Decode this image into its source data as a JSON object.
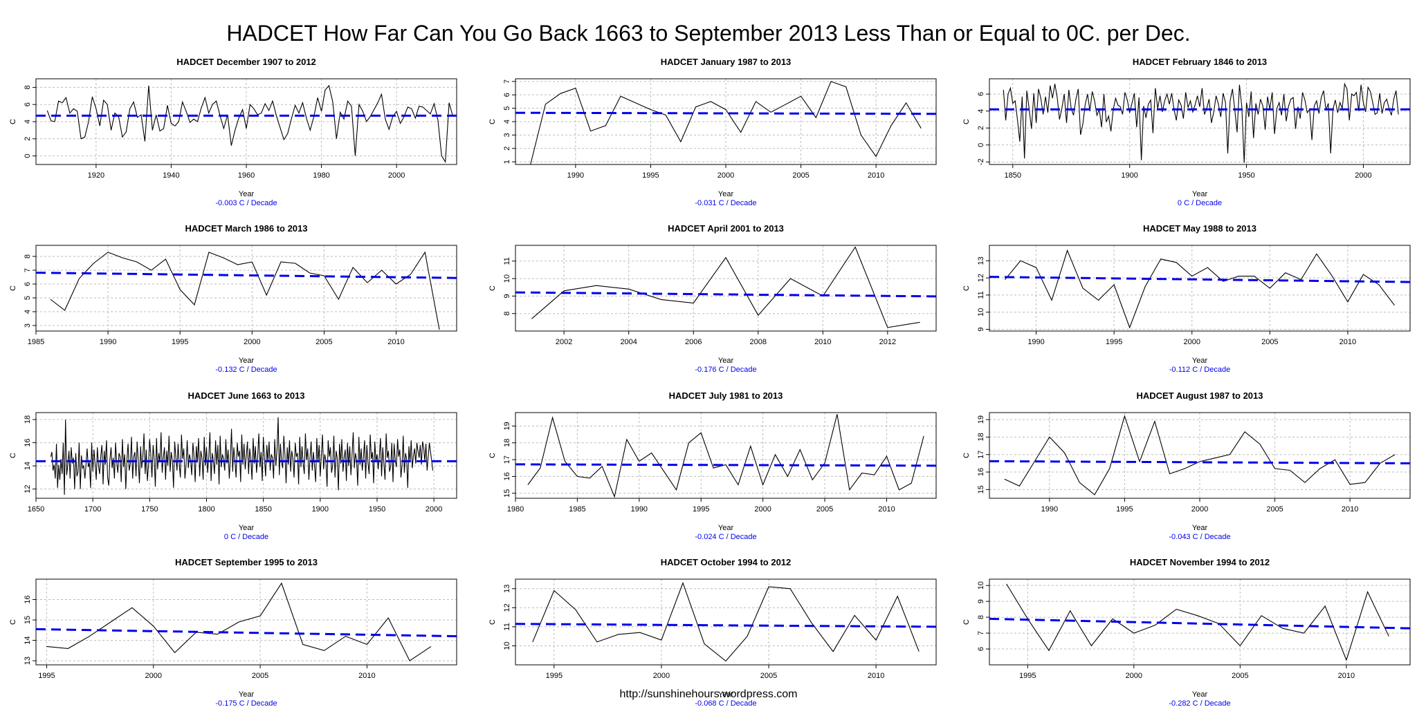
{
  "page": {
    "title": "HADCET How Far Can You Go Back 1663 to September 2013  Less Than or Equal to 0C. per Dec.",
    "footer_url": "http://sunshinehours.wordpress.com"
  },
  "colors": {
    "series": "#000000",
    "trend": "#0000ee",
    "grid": "#bbbbbb",
    "subtitle": "#0000ee"
  },
  "chart_data": [
    {
      "type": "line",
      "title": "HADCET December 1907 to 2012",
      "xlabel": "Year",
      "ylabel": "C",
      "subtitle": "-0.003 C / Decade",
      "xlim": [
        1904,
        2016
      ],
      "ylim": [
        -1,
        9
      ],
      "xticks": [
        1920,
        1940,
        1960,
        1980,
        2000
      ],
      "yticks": [
        0,
        2,
        4,
        6,
        8
      ],
      "trend": [
        [
          1904,
          4.7
        ],
        [
          2016,
          4.7
        ]
      ],
      "x_start": 1907,
      "values": [
        5.3,
        4.1,
        4.0,
        6.4,
        6.2,
        6.8,
        5.0,
        5.5,
        5.2,
        2.0,
        2.2,
        4.0,
        6.9,
        5.5,
        3.5,
        6.5,
        6.0,
        3.0,
        5.0,
        4.6,
        2.2,
        2.8,
        5.5,
        6.3,
        4.5,
        4.8,
        1.7,
        8.2,
        3.0,
        4.8,
        2.9,
        3.2,
        5.9,
        3.8,
        3.5,
        4.0,
        6.3,
        5.2,
        3.9,
        4.3,
        4.0,
        5.6,
        6.8,
        5.0,
        6.0,
        6.4,
        4.7,
        3.2,
        4.8,
        1.2,
        3.0,
        4.4,
        5.4,
        3.2,
        6.0,
        5.5,
        4.8,
        5.0,
        6.1,
        5.3,
        6.4,
        4.7,
        3.3,
        1.9,
        2.6,
        4.3,
        5.9,
        5.0,
        6.2,
        4.4,
        3.0,
        4.6,
        6.8,
        5.2,
        7.7,
        8.2,
        6.3,
        2.0,
        5.1,
        4.3,
        6.4,
        5.8,
        0.0,
        6.0,
        5.2,
        4.0,
        4.6,
        5.4,
        6.2,
        7.2,
        4.3,
        3.1,
        4.6,
        5.2,
        3.8,
        4.6,
        5.7,
        5.5,
        4.4,
        5.8,
        5.7,
        5.3,
        4.9,
        6.1,
        4.2,
        0.0,
        -0.7,
        6.2,
        4.6
      ]
    },
    {
      "type": "line",
      "title": "HADCET January 1987 to 2013",
      "xlabel": "Year",
      "ylabel": "C",
      "subtitle": "-0.031 C / Decade",
      "xlim": [
        1986,
        2014
      ],
      "ylim": [
        0.8,
        7.2
      ],
      "xticks": [
        1990,
        1995,
        2000,
        2005,
        2010
      ],
      "yticks": [
        1,
        2,
        3,
        4,
        5,
        6,
        7
      ],
      "trend": [
        [
          1986,
          4.66
        ],
        [
          2014,
          4.58
        ]
      ],
      "x_start": 1987,
      "values": [
        0.8,
        5.3,
        6.1,
        6.5,
        3.3,
        3.7,
        5.9,
        5.4,
        4.9,
        4.5,
        2.5,
        5.1,
        5.5,
        4.9,
        3.2,
        5.5,
        4.7,
        5.3,
        5.9,
        4.3,
        7.0,
        6.6,
        3.0,
        1.4,
        3.7,
        5.4,
        3.5
      ]
    },
    {
      "type": "line",
      "title": "HADCET February 1846 to 2013",
      "xlabel": "Year",
      "ylabel": "C",
      "subtitle": "0 C / Decade",
      "xlim": [
        1840,
        2020
      ],
      "ylim": [
        -2.3,
        7.8
      ],
      "xticks": [
        1850,
        1900,
        1950,
        2000
      ],
      "yticks": [
        -2,
        0,
        2,
        4,
        6
      ],
      "trend": [
        [
          1840,
          4.2
        ],
        [
          2020,
          4.2
        ]
      ],
      "x_start": 1846,
      "values": [
        6.5,
        2.9,
        6.0,
        6.7,
        4.9,
        5.2,
        3.0,
        0.4,
        5.7,
        -1.6,
        6.4,
        4.3,
        1.9,
        6.1,
        2.6,
        6.6,
        5.5,
        3.6,
        5.7,
        3.8,
        7.0,
        5.5,
        7.2,
        5.6,
        3.0,
        4.3,
        6.0,
        2.6,
        6.5,
        4.3,
        3.5,
        5.4,
        6.6,
        1.2,
        2.5,
        4.8,
        6.0,
        4.0,
        6.3,
        5.2,
        3.5,
        4.2,
        2.1,
        6.0,
        2.7,
        3.4,
        1.6,
        4.2,
        5.5,
        4.7,
        4.5,
        3.6,
        6.2,
        5.3,
        3.8,
        4.9,
        6.1,
        2.1,
        5.6,
        -1.8,
        4.6,
        3.2,
        4.8,
        5.3,
        1.4,
        6.7,
        4.3,
        5.8,
        3.9,
        5.2,
        6.0,
        4.8,
        6.1,
        4.2,
        2.9,
        5.3,
        4.7,
        3.1,
        6.2,
        4.4,
        5.2,
        3.9,
        4.7,
        5.8,
        4.5,
        6.7,
        3.6,
        4.3,
        5.4,
        2.6,
        3.9,
        5.8,
        4.8,
        3.3,
        6.1,
        5.0,
        -1.0,
        5.2,
        6.6,
        4.1,
        1.5,
        7.1,
        4.5,
        -2.1,
        5.0,
        3.3,
        6.3,
        0.8,
        4.9,
        3.6,
        5.4,
        4.6,
        1.8,
        5.7,
        4.2,
        6.2,
        1.3,
        4.3,
        5.0,
        3.5,
        6.0,
        2.8,
        4.6,
        5.4,
        5.6,
        1.9,
        4.5,
        3.1,
        6.2,
        5.3,
        3.8,
        4.2,
        0.6,
        4.6,
        5.2,
        3.7,
        5.6,
        6.4,
        4.1,
        4.9,
        -1.0,
        4.2,
        5.3,
        3.8,
        5.0,
        4.3,
        7.2,
        6.6,
        2.9,
        6.0,
        5.8,
        6.2,
        4.0,
        7.1,
        5.0,
        3.9,
        6.8,
        6.3,
        5.0,
        3.6,
        3.8,
        6.1,
        3.7,
        5.0,
        5.4,
        4.3,
        3.5,
        5.4,
        6.4,
        3.6
      ]
    },
    {
      "type": "line",
      "title": "HADCET March 1986 to 2013",
      "xlabel": "Year",
      "ylabel": "C",
      "subtitle": "-0.132 C / Decade",
      "xlim": [
        1985,
        2014.2
      ],
      "ylim": [
        2.6,
        8.8
      ],
      "xticks": [
        1985,
        1990,
        1995,
        2000,
        2005,
        2010
      ],
      "yticks": [
        3,
        4,
        5,
        6,
        7,
        8
      ],
      "trend": [
        [
          1985,
          6.82
        ],
        [
          2014.2,
          6.44
        ]
      ],
      "x_start": 1986,
      "values": [
        4.9,
        4.1,
        6.4,
        7.5,
        8.3,
        7.9,
        7.6,
        7.0,
        7.8,
        5.6,
        4.5,
        8.3,
        7.9,
        7.4,
        7.6,
        5.2,
        7.6,
        7.5,
        6.8,
        6.6,
        4.9,
        7.2,
        6.1,
        7.0,
        6.0,
        6.7,
        8.3,
        2.7
      ]
    },
    {
      "type": "line",
      "title": "HADCET April 2001 to 2013",
      "xlabel": "Year",
      "ylabel": "C",
      "subtitle": "-0.176 C / Decade",
      "xlim": [
        2000.5,
        2013.5
      ],
      "ylim": [
        7.0,
        11.9
      ],
      "xticks": [
        2002,
        2004,
        2006,
        2008,
        2010,
        2012
      ],
      "yticks": [
        8,
        9,
        10,
        11
      ],
      "trend": [
        [
          2000.5,
          9.21
        ],
        [
          2013.5,
          8.98
        ]
      ],
      "x_start": 2001,
      "values": [
        7.7,
        9.3,
        9.6,
        9.4,
        8.8,
        8.6,
        11.2,
        7.9,
        10.0,
        9.0,
        11.8,
        7.2,
        7.5
      ]
    },
    {
      "type": "line",
      "title": "HADCET May 1988 to 2013",
      "xlabel": "Year",
      "ylabel": "C",
      "subtitle": "-0.112 C / Decade",
      "xlim": [
        1987,
        2014
      ],
      "ylim": [
        8.9,
        13.9
      ],
      "xticks": [
        1990,
        1995,
        2000,
        2005,
        2010
      ],
      "yticks": [
        9,
        10,
        11,
        12,
        13
      ],
      "trend": [
        [
          1987,
          12.06
        ],
        [
          2014,
          11.76
        ]
      ],
      "x_start": 1988,
      "values": [
        11.9,
        13.0,
        12.6,
        10.7,
        13.6,
        11.4,
        10.7,
        11.6,
        9.1,
        11.5,
        13.1,
        12.9,
        12.1,
        12.6,
        11.8,
        12.1,
        12.1,
        11.4,
        12.3,
        11.9,
        13.4,
        12.1,
        10.6,
        12.2,
        11.6,
        10.4
      ]
    },
    {
      "type": "line",
      "title": "HADCET June 1663 to 2013",
      "xlabel": "Year",
      "ylabel": "C",
      "subtitle": "0 C / Decade",
      "xlim": [
        1650,
        2020
      ],
      "ylim": [
        11.2,
        18.6
      ],
      "xticks": [
        1650,
        1700,
        1750,
        1800,
        1850,
        1900,
        1950,
        2000
      ],
      "yticks": [
        12,
        14,
        16,
        18
      ],
      "trend": [
        [
          1650,
          14.4
        ],
        [
          2020,
          14.4
        ]
      ],
      "x_start": 1663,
      "values": [
        14.8,
        15.2,
        13.6,
        14.1,
        12.9,
        15.9,
        12.1,
        14.1,
        12.8,
        14.6,
        13.3,
        16.0,
        11.5,
        18.0,
        13.2,
        14.1,
        15.3,
        12.9,
        15.6,
        14.2,
        14.7,
        12.0,
        15.1,
        13.1,
        13.5,
        16.0,
        12.0,
        14.9,
        13.8,
        14.0,
        12.9,
        14.1,
        15.5,
        13.9,
        14.3,
        12.1,
        16.0,
        13.5,
        15.4,
        14.2,
        12.8,
        15.6,
        14.0,
        13.3,
        14.9,
        15.8,
        12.4,
        15.3,
        14.1,
        16.2,
        13.0,
        12.3,
        14.5,
        15.6,
        13.8,
        14.7,
        12.9,
        16.0,
        14.3,
        13.4,
        15.1,
        14.8,
        12.6,
        16.3,
        13.9,
        15.0,
        12.0,
        14.6,
        15.9,
        13.6,
        14.2,
        16.5,
        12.9,
        14.8,
        15.2,
        13.1,
        16.1,
        14.4,
        12.5,
        15.7,
        13.8,
        14.9,
        16.8,
        13.3,
        15.4,
        12.7,
        14.1,
        16.3,
        14.9,
        13.0,
        15.8,
        14.6,
        12.2,
        16.4,
        13.7,
        15.1,
        14.3,
        16.9,
        13.4,
        14.7,
        15.6,
        12.8,
        15.3,
        14.0,
        16.6,
        13.5,
        15.2,
        14.4,
        12.1,
        16.1,
        14.8,
        13.6,
        15.9,
        14.2,
        13.0,
        16.7,
        14.6,
        15.5,
        12.9,
        14.1,
        16.2,
        13.8,
        15.0,
        14.5,
        13.2,
        16.0,
        14.9,
        12.6,
        15.7,
        14.3,
        16.4,
        13.1,
        15.3,
        14.7,
        12.8,
        16.5,
        14.0,
        15.6,
        13.4,
        14.8,
        16.9,
        12.7,
        15.1,
        14.5,
        13.3,
        16.2,
        14.1,
        15.8,
        12.4,
        16.6,
        13.9,
        15.0,
        14.6,
        13.6,
        16.3,
        14.2,
        15.4,
        12.9,
        14.7,
        17.2,
        13.5,
        15.6,
        14.4,
        13.0,
        16.0,
        14.8,
        15.3,
        12.6,
        16.7,
        14.1,
        15.9,
        13.7,
        14.9,
        16.1,
        13.3,
        15.5,
        14.5,
        12.8,
        16.4,
        14.2,
        15.7,
        13.4,
        14.8,
        16.8,
        13.9,
        15.2,
        12.7,
        16.5,
        14.6,
        13.1,
        15.8,
        14.3,
        16.1,
        13.6,
        15.0,
        14.7,
        12.9,
        16.3,
        14.0,
        15.4,
        18.2,
        13.2,
        15.9,
        14.4,
        13.8,
        16.6,
        14.9,
        12.5,
        15.6,
        14.1,
        16.2,
        13.5,
        15.3,
        14.6,
        13.0,
        16.0,
        14.8,
        15.1,
        12.4,
        16.5,
        13.9,
        15.7,
        14.2,
        13.3,
        16.8,
        14.5,
        15.5,
        12.8,
        14.7,
        16.1,
        13.6,
        15.2,
        14.0,
        12.6,
        16.4,
        14.3,
        15.8,
        13.1,
        14.9,
        16.7,
        13.7,
        15.0,
        14.4,
        12.2,
        16.2,
        14.8,
        15.6,
        13.4,
        14.1,
        16.6,
        13.0,
        15.3,
        14.6,
        11.9,
        15.9,
        14.2,
        16.3,
        13.5,
        14.7,
        15.4,
        12.7,
        16.0,
        14.0,
        15.7,
        13.2,
        14.9,
        16.9,
        13.8,
        15.1,
        14.5,
        12.3,
        16.5,
        14.1,
        15.5,
        13.6,
        14.8,
        16.2,
        12.9,
        15.8,
        14.3,
        13.3,
        16.7,
        14.6,
        15.2,
        12.5,
        16.1,
        14.4,
        15.0,
        13.7,
        14.9,
        16.4,
        13.1,
        15.6,
        14.2,
        12.8,
        16.8,
        14.7,
        15.3,
        13.5,
        14.0,
        16.0,
        12.6,
        15.9,
        14.5,
        13.9,
        16.3,
        14.8,
        15.4,
        13.0,
        14.1,
        16.6,
        13.4,
        15.1,
        14.6,
        12.1,
        15.7,
        14.3,
        16.2,
        13.8,
        14.9,
        15.5,
        14.2,
        16.0,
        15.3,
        14.7,
        15.8,
        14.1,
        16.1,
        15.6,
        14.4,
        15.9,
        13.6,
        14.8,
        16.0,
        15.2,
        14.5,
        13.6
      ]
    },
    {
      "type": "line",
      "title": "HADCET July 1981 to 2013",
      "xlabel": "Year",
      "ylabel": "C",
      "subtitle": "-0.024 C / Decade",
      "xlim": [
        1980,
        2014
      ],
      "ylim": [
        14.7,
        19.8
      ],
      "xticks": [
        1980,
        1985,
        1990,
        1995,
        2000,
        2005,
        2010
      ],
      "yticks": [
        15,
        16,
        17,
        18,
        19
      ],
      "trend": [
        [
          1980,
          16.72
        ],
        [
          2014,
          16.64
        ]
      ],
      "x_start": 1981,
      "values": [
        15.5,
        16.5,
        19.5,
        16.9,
        16.0,
        15.9,
        16.6,
        14.8,
        18.2,
        16.9,
        17.4,
        16.3,
        15.2,
        18.0,
        18.6,
        16.5,
        16.7,
        15.5,
        17.8,
        15.5,
        17.3,
        16.0,
        17.6,
        15.8,
        16.8,
        19.7,
        15.2,
        16.2,
        16.1,
        17.2,
        15.2,
        15.6,
        18.4
      ]
    },
    {
      "type": "line",
      "title": "HADCET August 1987 to 2013",
      "xlabel": "Year",
      "ylabel": "C",
      "subtitle": "-0.043 C / Decade",
      "xlim": [
        1986,
        2014
      ],
      "ylim": [
        14.5,
        19.4
      ],
      "xticks": [
        1990,
        1995,
        2000,
        2005,
        2010
      ],
      "yticks": [
        15,
        16,
        17,
        18,
        19
      ],
      "trend": [
        [
          1986,
          16.62
        ],
        [
          2014,
          16.5
        ]
      ],
      "x_start": 1987,
      "values": [
        15.6,
        15.2,
        16.6,
        18.0,
        17.1,
        15.4,
        14.7,
        16.2,
        19.2,
        16.6,
        18.9,
        15.9,
        16.2,
        16.6,
        16.8,
        17.0,
        18.3,
        17.6,
        16.2,
        16.1,
        15.4,
        16.2,
        16.7,
        15.3,
        15.4,
        16.5,
        17.0
      ]
    },
    {
      "type": "line",
      "title": "HADCET September 1995 to 2013",
      "xlabel": "Year",
      "ylabel": "C",
      "subtitle": "-0.175 C / Decade",
      "xlim": [
        1994.5,
        2014.2
      ],
      "ylim": [
        12.8,
        17.0
      ],
      "xticks": [
        1995,
        2000,
        2005,
        2010
      ],
      "yticks": [
        13,
        14,
        15,
        16
      ],
      "trend": [
        [
          1994.5,
          14.55
        ],
        [
          2014.2,
          14.2
        ]
      ],
      "x_start": 1995,
      "values": [
        13.7,
        13.6,
        14.2,
        14.9,
        15.6,
        14.7,
        13.4,
        14.4,
        14.3,
        14.9,
        15.2,
        16.8,
        13.8,
        13.5,
        14.2,
        13.8,
        15.1,
        13.0,
        13.7
      ]
    },
    {
      "type": "line",
      "title": "HADCET October 1994 to 2012",
      "xlabel": "Year",
      "ylabel": "C",
      "subtitle": "-0.068 C / Decade",
      "xlim": [
        1993.2,
        2012.8
      ],
      "ylim": [
        9.0,
        13.5
      ],
      "xticks": [
        1995,
        2000,
        2005,
        2010
      ],
      "yticks": [
        10,
        11,
        12,
        13
      ],
      "trend": [
        [
          1993.2,
          11.15
        ],
        [
          2012.8,
          11.0
        ]
      ],
      "x_start": 1994,
      "values": [
        10.2,
        12.9,
        11.9,
        10.2,
        10.6,
        10.7,
        10.3,
        13.3,
        10.1,
        9.2,
        10.5,
        13.1,
        13.0,
        11.2,
        9.7,
        11.6,
        10.3,
        12.6,
        9.7
      ]
    },
    {
      "type": "line",
      "title": "HADCET November 1994 to 2012",
      "xlabel": "Year",
      "ylabel": "C",
      "subtitle": "-0.282 C / Decade",
      "xlim": [
        1993.2,
        2013
      ],
      "ylim": [
        5.0,
        10.4
      ],
      "xticks": [
        1995,
        2000,
        2005,
        2010
      ],
      "yticks": [
        6,
        7,
        8,
        9,
        10
      ],
      "trend": [
        [
          1993.2,
          7.9
        ],
        [
          2013,
          7.3
        ]
      ],
      "x_start": 1994,
      "values": [
        10.1,
        7.9,
        5.9,
        8.4,
        6.2,
        7.9,
        7.0,
        7.5,
        8.5,
        8.1,
        7.6,
        6.2,
        8.1,
        7.3,
        7.0,
        8.7,
        5.3,
        9.6,
        6.8
      ]
    }
  ]
}
